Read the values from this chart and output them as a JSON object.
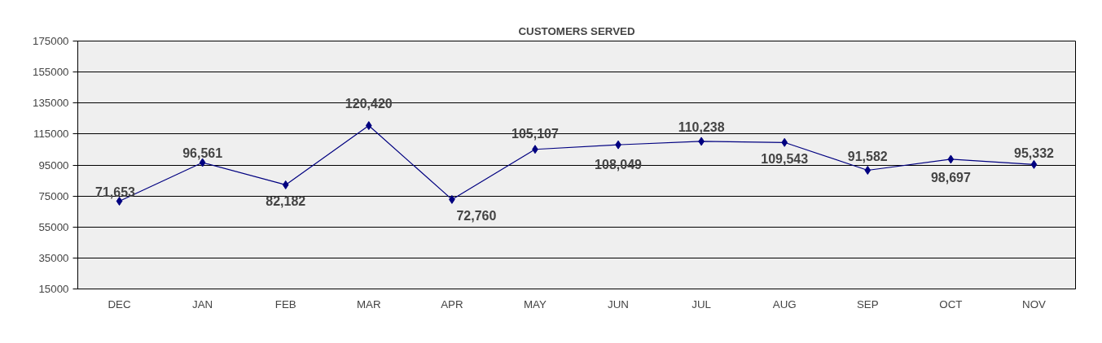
{
  "chart_data": {
    "type": "line",
    "title": "CUSTOMERS SERVED",
    "categories": [
      "DEC",
      "JAN",
      "FEB",
      "MAR",
      "APR",
      "MAY",
      "JUN",
      "JUL",
      "AUG",
      "SEP",
      "OCT",
      "NOV"
    ],
    "series": [
      {
        "color": "#000080",
        "values": [
          71653,
          96561,
          82182,
          120420,
          72760,
          105107,
          108049,
          110238,
          109543,
          91582,
          98697,
          95332
        ],
        "value_labels": [
          "71,653",
          "96,561",
          "82,182",
          "120,420",
          "72,760",
          "105,107",
          "108,049",
          "110,238",
          "109,543",
          "91,582",
          "98,697",
          "95,332"
        ]
      }
    ],
    "ylim": [
      15000,
      175000
    ],
    "yticks": [
      15000,
      35000,
      55000,
      75000,
      95000,
      115000,
      135000,
      155000,
      175000
    ],
    "grid": "y",
    "marker": "diamond",
    "line_style": "solid"
  }
}
